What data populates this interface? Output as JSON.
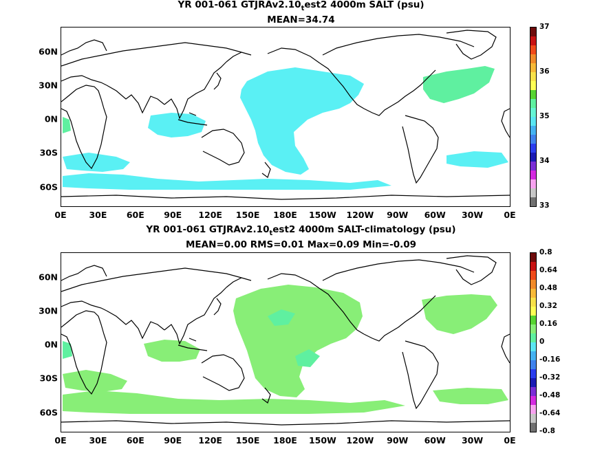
{
  "panel1": {
    "title_pre": "YR 001-061 GTJRAv2.10",
    "title_sub": "t",
    "title_post": "est2 4000m SALT (psu)",
    "stats": "MEAN=34.74",
    "colorbar_labels": [
      "37",
      "36",
      "35",
      "34",
      "33"
    ],
    "palette": [
      "#6e0b0b",
      "#c81212",
      "#f04a1a",
      "#f08a2a",
      "#f7b938",
      "#f8e14a",
      "#ffff55",
      "#57d431",
      "#5ff0a0",
      "#66f4d4",
      "#5ae6f2",
      "#44b2f1",
      "#3f82ec",
      "#2b3ded",
      "#1a1ab4",
      "#7a2dd6",
      "#d42ae0",
      "#f7a2ef",
      "#c6c6c6",
      "#707070"
    ],
    "fill_color": "#5af0f4",
    "fill_color_2": "#5ff0a0"
  },
  "panel2": {
    "title_pre": "YR 001-061 GTJRAv2.10",
    "title_sub": "t",
    "title_post": "est2 4000m SALT-climatology (psu)",
    "stats": "MEAN=0.00   RMS=0.01   Max=0.09   Min=-0.09",
    "colorbar_labels": [
      "0.8",
      "0.64",
      "0.48",
      "0.32",
      "0.16",
      "0",
      "-0.16",
      "-0.32",
      "-0.48",
      "-0.64",
      "-0.8"
    ],
    "palette": [
      "#6e0b0b",
      "#c81212",
      "#f04a1a",
      "#f08a2a",
      "#f7b938",
      "#f8e14a",
      "#ffff55",
      "#57d431",
      "#88ee77",
      "#5ff0a0",
      "#5ae6f2",
      "#44b2f1",
      "#3f82ec",
      "#2b3ded",
      "#1a1ab4",
      "#7a2dd6",
      "#d42ae0",
      "#f7a2ef",
      "#c6c6c6",
      "#707070"
    ],
    "fill_color": "#88ee77",
    "fill_color_2": "#5ff0a0"
  },
  "axes": {
    "x_ticks": [
      "0E",
      "30E",
      "60E",
      "90E",
      "120E",
      "150E",
      "180E",
      "150W",
      "120W",
      "90W",
      "60W",
      "30W",
      "0E"
    ],
    "y_ticks": [
      "60N",
      "30N",
      "0N",
      "30S",
      "60S"
    ]
  }
}
